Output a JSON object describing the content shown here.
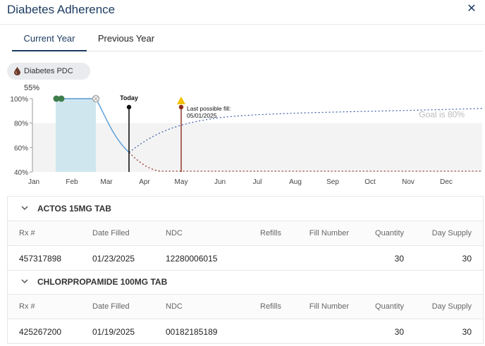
{
  "header": {
    "title": "Diabetes Adherence",
    "close_glyph": "✕"
  },
  "tabs": [
    {
      "label": "Current Year",
      "active": true
    },
    {
      "label": "Previous Year",
      "active": false
    }
  ],
  "pill": {
    "label": "Diabetes PDC 55%",
    "icon": "drop-icon",
    "icon_color": "#6b3a2a"
  },
  "chart_data": {
    "type": "line",
    "y_ticks": [
      "100%",
      "80%",
      "60%",
      "40%"
    ],
    "ylim": [
      40,
      100
    ],
    "x_ticks": [
      "Jan",
      "Feb",
      "Mar",
      "Apr",
      "May",
      "Jun",
      "Jul",
      "Aug",
      "Sep",
      "Oct",
      "Nov",
      "Dec"
    ],
    "goal_label": "Goal is 80%",
    "goal_value": 80,
    "today_label": "Today",
    "last_fill_label": "Last possible fill:",
    "last_fill_date": "05/01/2025",
    "colors": {
      "actual": "#5b9bd5",
      "projected": "#3a5aa8",
      "worst_case": "#8b2a1a",
      "today": "#111111",
      "last_fill": "#8b2a1a",
      "covered_band": "#cfe6ee",
      "goal_band": "#f3f3f3",
      "warning": "#f2c200",
      "fill_dot": "#3e7d4c"
    }
  },
  "table": {
    "columns": [
      "Rx #",
      "Date Filled",
      "NDC",
      "Refills",
      "Fill Number",
      "Quantity",
      "Day Supply"
    ],
    "groups": [
      {
        "name": "ACTOS 15MG TAB",
        "rows": [
          {
            "rx": "457317898",
            "date": "01/23/2025",
            "ndc": "12280006015",
            "refills": "",
            "fill_number": "",
            "quantity": "30",
            "day_supply": "30"
          }
        ]
      },
      {
        "name": "CHLORPROPAMIDE 100MG TAB",
        "rows": [
          {
            "rx": "425267200",
            "date": "01/19/2025",
            "ndc": "00182185189",
            "refills": "",
            "fill_number": "",
            "quantity": "30",
            "day_supply": "30"
          }
        ]
      }
    ]
  }
}
